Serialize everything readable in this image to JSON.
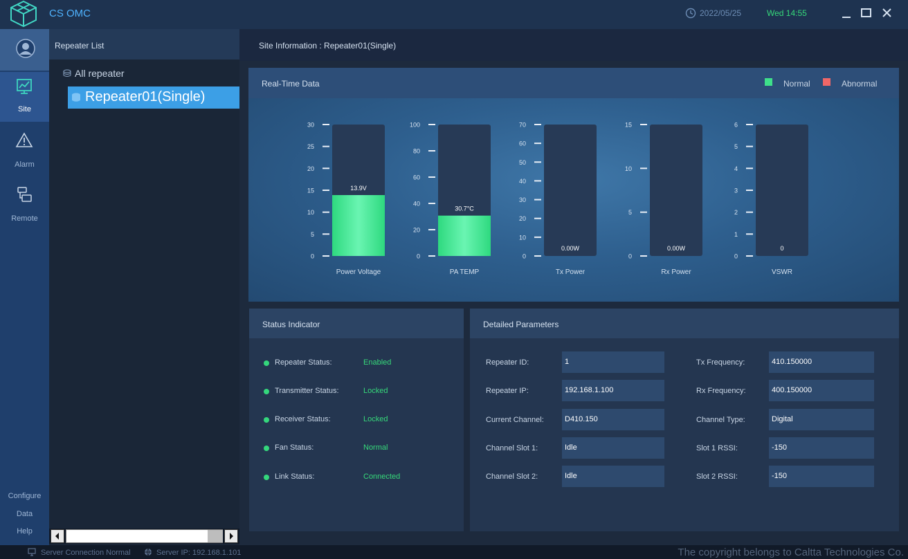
{
  "app": {
    "title": "CS OMC",
    "date": "2022/05/25",
    "time": "Wed 14:55"
  },
  "nav": {
    "items": [
      {
        "label": "Site"
      },
      {
        "label": "Alarm"
      },
      {
        "label": "Remote"
      }
    ],
    "bottom": [
      "Configure",
      "Data",
      "Help"
    ]
  },
  "repeater_list": {
    "header": "Repeater List",
    "root": "All repeater",
    "selected": "Repeater01(Single)"
  },
  "site_info": "Site Information : Repeater01(Single)",
  "realtime": {
    "title": "Real-Time Data",
    "legend": [
      {
        "label": "Normal",
        "color": "#3ee08a"
      },
      {
        "label": "Abnormal",
        "color": "#f06767"
      }
    ],
    "gauges": [
      {
        "name": "Power Voltage",
        "value": 13.9,
        "value_text": "13.9V",
        "max": 30,
        "ticks": [
          "0",
          "5",
          "10",
          "15",
          "20",
          "25",
          "30"
        ],
        "status": "normal"
      },
      {
        "name": "PA TEMP",
        "value": 30.7,
        "value_text": "30.7°C",
        "max": 100,
        "ticks": [
          "0",
          "20",
          "40",
          "60",
          "80",
          "100"
        ],
        "status": "normal"
      },
      {
        "name": "Tx Power",
        "value": 0,
        "value_text": "0.00W",
        "max": 70,
        "ticks": [
          "0",
          "10",
          "20",
          "30",
          "40",
          "50",
          "60",
          "70"
        ],
        "status": "normal"
      },
      {
        "name": "Rx Power",
        "value": 0,
        "value_text": "0.00W",
        "max": 15,
        "ticks": [
          "0",
          "5",
          "10",
          "15"
        ],
        "status": "normal"
      },
      {
        "name": "VSWR",
        "value": 0,
        "value_text": "0",
        "max": 6,
        "ticks": [
          "0",
          "1",
          "2",
          "3",
          "4",
          "5",
          "6"
        ],
        "status": "normal"
      }
    ]
  },
  "status_indicator": {
    "title": "Status Indicator",
    "rows": [
      {
        "label": "Repeater Status:",
        "value": "Enabled"
      },
      {
        "label": "Transmitter Status:",
        "value": "Locked"
      },
      {
        "label": "Receiver Status:",
        "value": "Locked"
      },
      {
        "label": "Fan Status:",
        "value": "Normal"
      },
      {
        "label": "Link Status:",
        "value": "Connected"
      }
    ]
  },
  "detailed_params": {
    "title": "Detailed Parameters",
    "left": [
      {
        "label": "Repeater ID:",
        "value": "1"
      },
      {
        "label": "Repeater IP:",
        "value": "192.168.1.100"
      },
      {
        "label": "Current Channel:",
        "value": "D410.150"
      },
      {
        "label": "Channel Slot 1:",
        "value": "Idle"
      },
      {
        "label": "Channel Slot 2:",
        "value": "Idle"
      }
    ],
    "right": [
      {
        "label": "Tx Frequency:",
        "value": "410.150000"
      },
      {
        "label": "Rx Frequency:",
        "value": "400.150000"
      },
      {
        "label": "Channel Type:",
        "value": "Digital"
      },
      {
        "label": "Slot 1 RSSI:",
        "value": "-150"
      },
      {
        "label": "Slot 2 RSSI:",
        "value": "-150"
      }
    ]
  },
  "statusbar": {
    "connection": "Server Connection Normal",
    "server_ip": "Server IP: 192.168.1.101",
    "copyright": "The copyright belongs to Caltta Technologies Co."
  }
}
